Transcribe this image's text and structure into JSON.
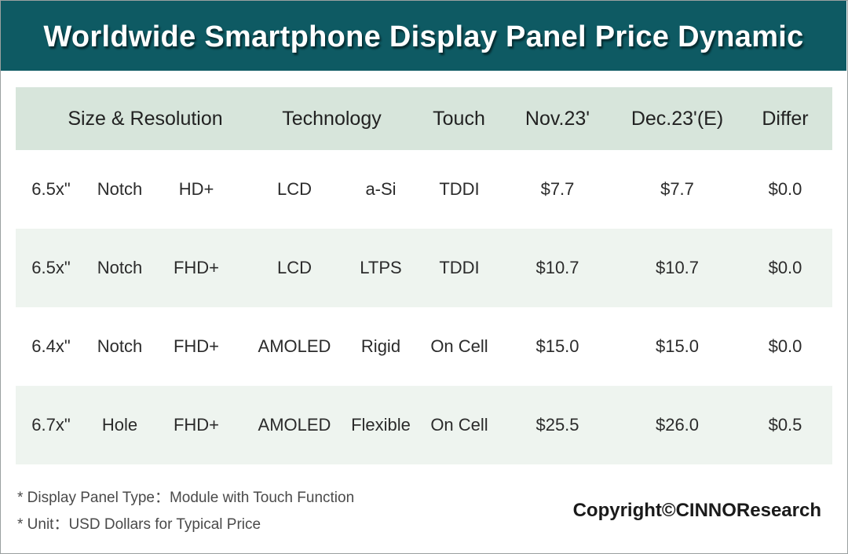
{
  "title": "Worldwide Smartphone Display Panel Price Dynamic",
  "chart_data": {
    "type": "table",
    "columns": [
      "Size & Resolution",
      "Technology",
      "Touch",
      "Nov.23'",
      "Dec.23'(E)",
      "Differ"
    ],
    "rows": [
      {
        "size": "6.5x\"",
        "shape": "Notch",
        "resolution": "HD+",
        "tech": "LCD",
        "substrate": "a-Si",
        "touch": "TDDI",
        "nov": "$7.7",
        "dec": "$7.7",
        "diff": "$0.0"
      },
      {
        "size": "6.5x\"",
        "shape": "Notch",
        "resolution": "FHD+",
        "tech": "LCD",
        "substrate": "LTPS",
        "touch": "TDDI",
        "nov": "$10.7",
        "dec": "$10.7",
        "diff": "$0.0"
      },
      {
        "size": "6.4x\"",
        "shape": "Notch",
        "resolution": "FHD+",
        "tech": "AMOLED",
        "substrate": "Rigid",
        "touch": "On Cell",
        "nov": "$15.0",
        "dec": "$15.0",
        "diff": "$0.0"
      },
      {
        "size": "6.7x\"",
        "shape": "Hole",
        "resolution": "FHD+",
        "tech": "AMOLED",
        "substrate": "Flexible",
        "touch": "On Cell",
        "nov": "$25.5",
        "dec": "$26.0",
        "diff": "$0.5"
      }
    ]
  },
  "notes": [
    "* Display Panel Type：Module with Touch Function",
    "* Unit：USD Dollars for Typical Price"
  ],
  "copyright": "Copyright©CINNOResearch",
  "colors": {
    "banner": "#0e5a63",
    "header_row": "#d7e5db",
    "shaded_row": "#eef4ef"
  }
}
